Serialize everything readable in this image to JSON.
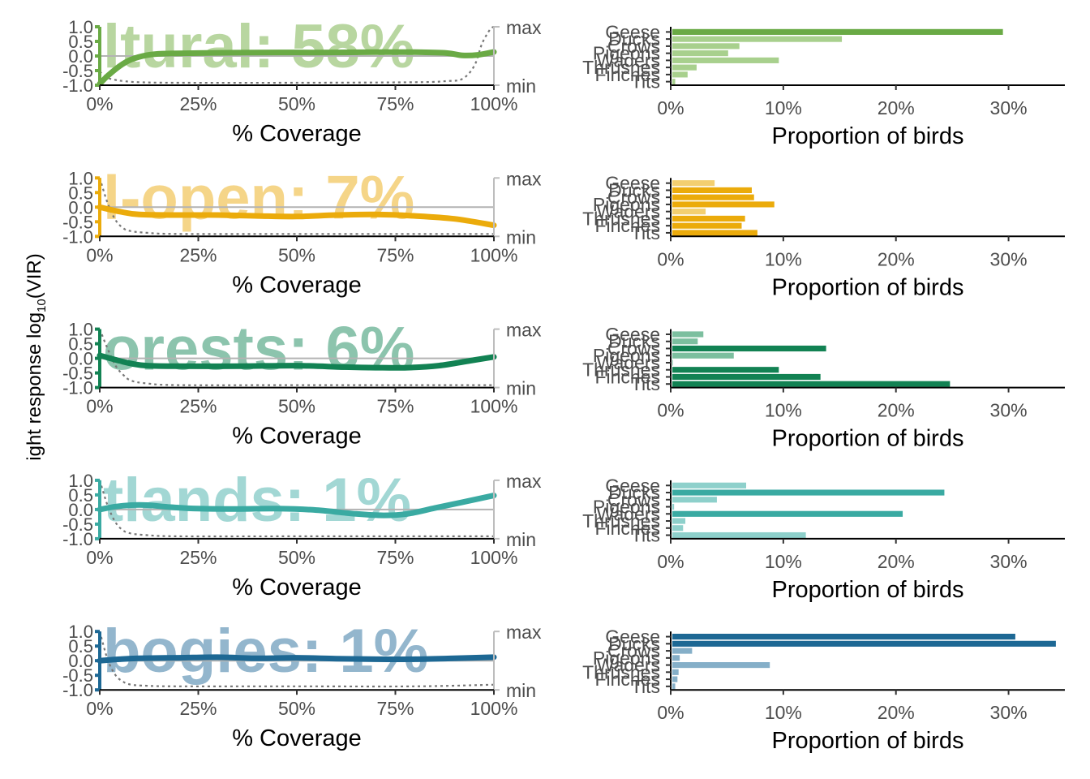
{
  "figure": {
    "y_axis_label": "ight response log",
    "y_axis_label_sub": "10",
    "y_axis_label_tail": "(VIR)",
    "left_xlabel": "% Coverage",
    "right_xlabel": "Proportion of birds",
    "secondary_axis_top": "max",
    "secondary_axis_bottom": "min"
  },
  "chart_data": [
    {
      "type": "line",
      "panel": "left",
      "watermark": "ltural: 58%",
      "color": "#6aaa45",
      "watermark_color": "#b8d6a0",
      "xlabel": "% Coverage",
      "x_ticks": [
        "0%",
        "25%",
        "50%",
        "75%",
        "100%"
      ],
      "y_ticks": [
        "1.0",
        "0.5",
        "0.0",
        "-0.5",
        "-1.0"
      ],
      "xlim": [
        0,
        100
      ],
      "ylim": [
        -1.0,
        1.0
      ],
      "series": [
        {
          "role": "response",
          "x": [
            0,
            2,
            5,
            8,
            12,
            16,
            25,
            40,
            55,
            70,
            80,
            88,
            92,
            96,
            100
          ],
          "y": [
            -0.95,
            -0.68,
            -0.35,
            -0.12,
            0.03,
            0.08,
            0.1,
            0.12,
            0.12,
            0.13,
            0.13,
            0.1,
            0.02,
            0.04,
            0.14
          ]
        },
        {
          "role": "coverage-density",
          "x": [
            0,
            2,
            4,
            6,
            10,
            20,
            50,
            80,
            88,
            92,
            95,
            97,
            99,
            100
          ],
          "y": [
            0.2,
            0.09,
            0.05,
            0.03,
            0.01,
            0.0,
            0.0,
            0.01,
            0.03,
            0.07,
            0.3,
            0.7,
            0.95,
            1.0
          ]
        }
      ]
    },
    {
      "type": "line",
      "panel": "left",
      "watermark": "l-open: 7%",
      "color": "#ebab0b",
      "watermark_color": "#f5d588",
      "xlabel": "% Coverage",
      "x_ticks": [
        "0%",
        "25%",
        "50%",
        "75%",
        "100%"
      ],
      "y_ticks": [
        "1.0",
        "0.5",
        "0.0",
        "-0.5",
        "-1.0"
      ],
      "xlim": [
        0,
        100
      ],
      "ylim": [
        -1.0,
        1.0
      ],
      "series": [
        {
          "role": "response",
          "x": [
            0,
            5,
            10,
            20,
            30,
            40,
            50,
            60,
            70,
            80,
            90,
            100
          ],
          "y": [
            0.0,
            -0.15,
            -0.25,
            -0.27,
            -0.27,
            -0.3,
            -0.32,
            -0.27,
            -0.25,
            -0.3,
            -0.4,
            -0.62
          ]
        },
        {
          "role": "coverage-density",
          "x": [
            0,
            2,
            4,
            6,
            8,
            12,
            20,
            50,
            100
          ],
          "y": [
            1.0,
            0.55,
            0.25,
            0.1,
            0.05,
            0.02,
            0.0,
            0.0,
            0.0
          ]
        }
      ]
    },
    {
      "type": "line",
      "panel": "left",
      "watermark": "orests: 6%",
      "color": "#128253",
      "watermark_color": "#8cc4ad",
      "xlabel": "% Coverage",
      "x_ticks": [
        "0%",
        "25%",
        "50%",
        "75%",
        "100%"
      ],
      "y_ticks": [
        "1.0",
        "0.5",
        "0.0",
        "-0.5",
        "-1.0"
      ],
      "xlim": [
        0,
        100
      ],
      "ylim": [
        -1.0,
        1.0
      ],
      "series": [
        {
          "role": "response",
          "x": [
            0,
            4,
            8,
            12,
            20,
            35,
            50,
            62,
            70,
            78,
            86,
            94,
            100
          ],
          "y": [
            0.1,
            -0.05,
            -0.18,
            -0.25,
            -0.27,
            -0.27,
            -0.25,
            -0.3,
            -0.32,
            -0.32,
            -0.25,
            -0.08,
            0.05
          ]
        },
        {
          "role": "coverage-density",
          "x": [
            0,
            2,
            4,
            6,
            8,
            12,
            20,
            50,
            100
          ],
          "y": [
            1.0,
            0.65,
            0.35,
            0.18,
            0.08,
            0.03,
            0.0,
            0.0,
            0.0
          ]
        }
      ]
    },
    {
      "type": "line",
      "panel": "left",
      "watermark": "tlands: 1%",
      "color": "#3aaaa2",
      "watermark_color": "#a2d7d4",
      "xlabel": "% Coverage",
      "x_ticks": [
        "0%",
        "25%",
        "50%",
        "75%",
        "100%"
      ],
      "y_ticks": [
        "1.0",
        "0.5",
        "0.0",
        "-0.5",
        "-1.0"
      ],
      "xlim": [
        0,
        100
      ],
      "ylim": [
        -1.0,
        1.0
      ],
      "series": [
        {
          "role": "response",
          "x": [
            0,
            4,
            8,
            12,
            18,
            25,
            35,
            45,
            55,
            65,
            72,
            78,
            85,
            92,
            100
          ],
          "y": [
            0.0,
            0.1,
            0.15,
            0.15,
            0.08,
            0.03,
            0.02,
            0.03,
            -0.02,
            -0.15,
            -0.2,
            -0.15,
            0.05,
            0.25,
            0.48
          ]
        },
        {
          "role": "coverage-density",
          "x": [
            0,
            2,
            4,
            6,
            8,
            12,
            20,
            50,
            100
          ],
          "y": [
            1.0,
            0.55,
            0.25,
            0.1,
            0.05,
            0.02,
            0.0,
            0.0,
            0.0
          ]
        }
      ]
    },
    {
      "type": "line",
      "panel": "left",
      "watermark": "bogies: 1%",
      "color": "#1d6894",
      "watermark_color": "#93b6cd",
      "xlabel": "% Coverage",
      "x_ticks": [
        "0%",
        "25%",
        "50%",
        "75%",
        "100%"
      ],
      "y_ticks": [
        "1.0",
        "0.5",
        "0.0",
        "-0.5",
        "-1.0"
      ],
      "xlim": [
        0,
        100
      ],
      "ylim": [
        -1.0,
        1.0
      ],
      "series": [
        {
          "role": "response",
          "x": [
            0,
            5,
            10,
            20,
            30,
            40,
            50,
            60,
            70,
            80,
            90,
            100
          ],
          "y": [
            0.0,
            0.05,
            0.08,
            0.1,
            0.12,
            0.08,
            0.1,
            0.07,
            0.05,
            0.05,
            0.08,
            0.12
          ]
        },
        {
          "role": "coverage-density",
          "x": [
            0,
            2,
            4,
            6,
            8,
            12,
            20,
            50,
            80,
            100
          ],
          "y": [
            1.0,
            0.5,
            0.22,
            0.1,
            0.05,
            0.03,
            0.02,
            0.02,
            0.02,
            0.05
          ]
        }
      ]
    },
    {
      "type": "bar",
      "panel": "right",
      "orientation": "horizontal",
      "color": "#6aaa45",
      "light_color": "#a8d08d",
      "xlabel": "Proportion of birds",
      "x_ticks": [
        "0%",
        "10%",
        "20%",
        "30%"
      ],
      "xlim": [
        0,
        35
      ],
      "categories": [
        "Geese",
        "Ducks",
        "Crows",
        "Pigeons",
        "Waders",
        "Thrushes",
        "Finches",
        "Tits"
      ],
      "values": [
        29.5,
        15.2,
        6.1,
        5.1,
        9.6,
        2.3,
        1.5,
        0.4
      ],
      "highlighted": [
        true,
        false,
        false,
        false,
        false,
        false,
        false,
        false
      ]
    },
    {
      "type": "bar",
      "panel": "right",
      "orientation": "horizontal",
      "color": "#ebab0b",
      "light_color": "#f3cf70",
      "xlabel": "Proportion of birds",
      "x_ticks": [
        "0%",
        "10%",
        "20%",
        "30%"
      ],
      "xlim": [
        0,
        35
      ],
      "categories": [
        "Geese",
        "Ducks",
        "Crows",
        "Pigeons",
        "Waders",
        "Thrushes",
        "Finches",
        "Tits"
      ],
      "values": [
        3.9,
        7.2,
        7.4,
        9.2,
        3.1,
        6.6,
        6.3,
        7.7
      ],
      "highlighted": [
        false,
        true,
        true,
        true,
        false,
        true,
        true,
        true
      ]
    },
    {
      "type": "bar",
      "panel": "right",
      "orientation": "horizontal",
      "color": "#128253",
      "light_color": "#7cbf9f",
      "xlabel": "Proportion of birds",
      "x_ticks": [
        "0%",
        "10%",
        "20%",
        "30%"
      ],
      "xlim": [
        0,
        35
      ],
      "categories": [
        "Geese",
        "Ducks",
        "Crows",
        "Pigeons",
        "Waders",
        "Thrushes",
        "Finches",
        "Tits"
      ],
      "values": [
        2.9,
        2.4,
        13.8,
        5.6,
        0.2,
        9.6,
        13.3,
        24.8
      ],
      "highlighted": [
        false,
        false,
        true,
        false,
        false,
        true,
        true,
        true
      ]
    },
    {
      "type": "bar",
      "panel": "right",
      "orientation": "horizontal",
      "color": "#3aaaa2",
      "light_color": "#8ed0cb",
      "xlabel": "Proportion of birds",
      "x_ticks": [
        "0%",
        "10%",
        "20%",
        "30%"
      ],
      "xlim": [
        0,
        35
      ],
      "categories": [
        "Geese",
        "Ducks",
        "Crows",
        "Pigeons",
        "Waders",
        "Thrushes",
        "Finches",
        "Tits"
      ],
      "values": [
        6.7,
        24.3,
        4.1,
        0.3,
        20.6,
        1.3,
        1.1,
        12.0
      ],
      "highlighted": [
        false,
        true,
        false,
        false,
        true,
        false,
        false,
        false
      ]
    },
    {
      "type": "bar",
      "panel": "right",
      "orientation": "horizontal",
      "color": "#1d6894",
      "light_color": "#85afc8",
      "xlabel": "Proportion of birds",
      "x_ticks": [
        "0%",
        "10%",
        "20%",
        "30%"
      ],
      "xlim": [
        0,
        35
      ],
      "categories": [
        "Geese",
        "Ducks",
        "Crows",
        "Pigeons",
        "Waders",
        "Thrushes",
        "Finches",
        "Tits"
      ],
      "values": [
        30.6,
        34.2,
        1.9,
        0.8,
        8.8,
        0.7,
        0.6,
        0.4
      ],
      "highlighted": [
        true,
        true,
        false,
        false,
        false,
        false,
        false,
        false
      ]
    }
  ]
}
